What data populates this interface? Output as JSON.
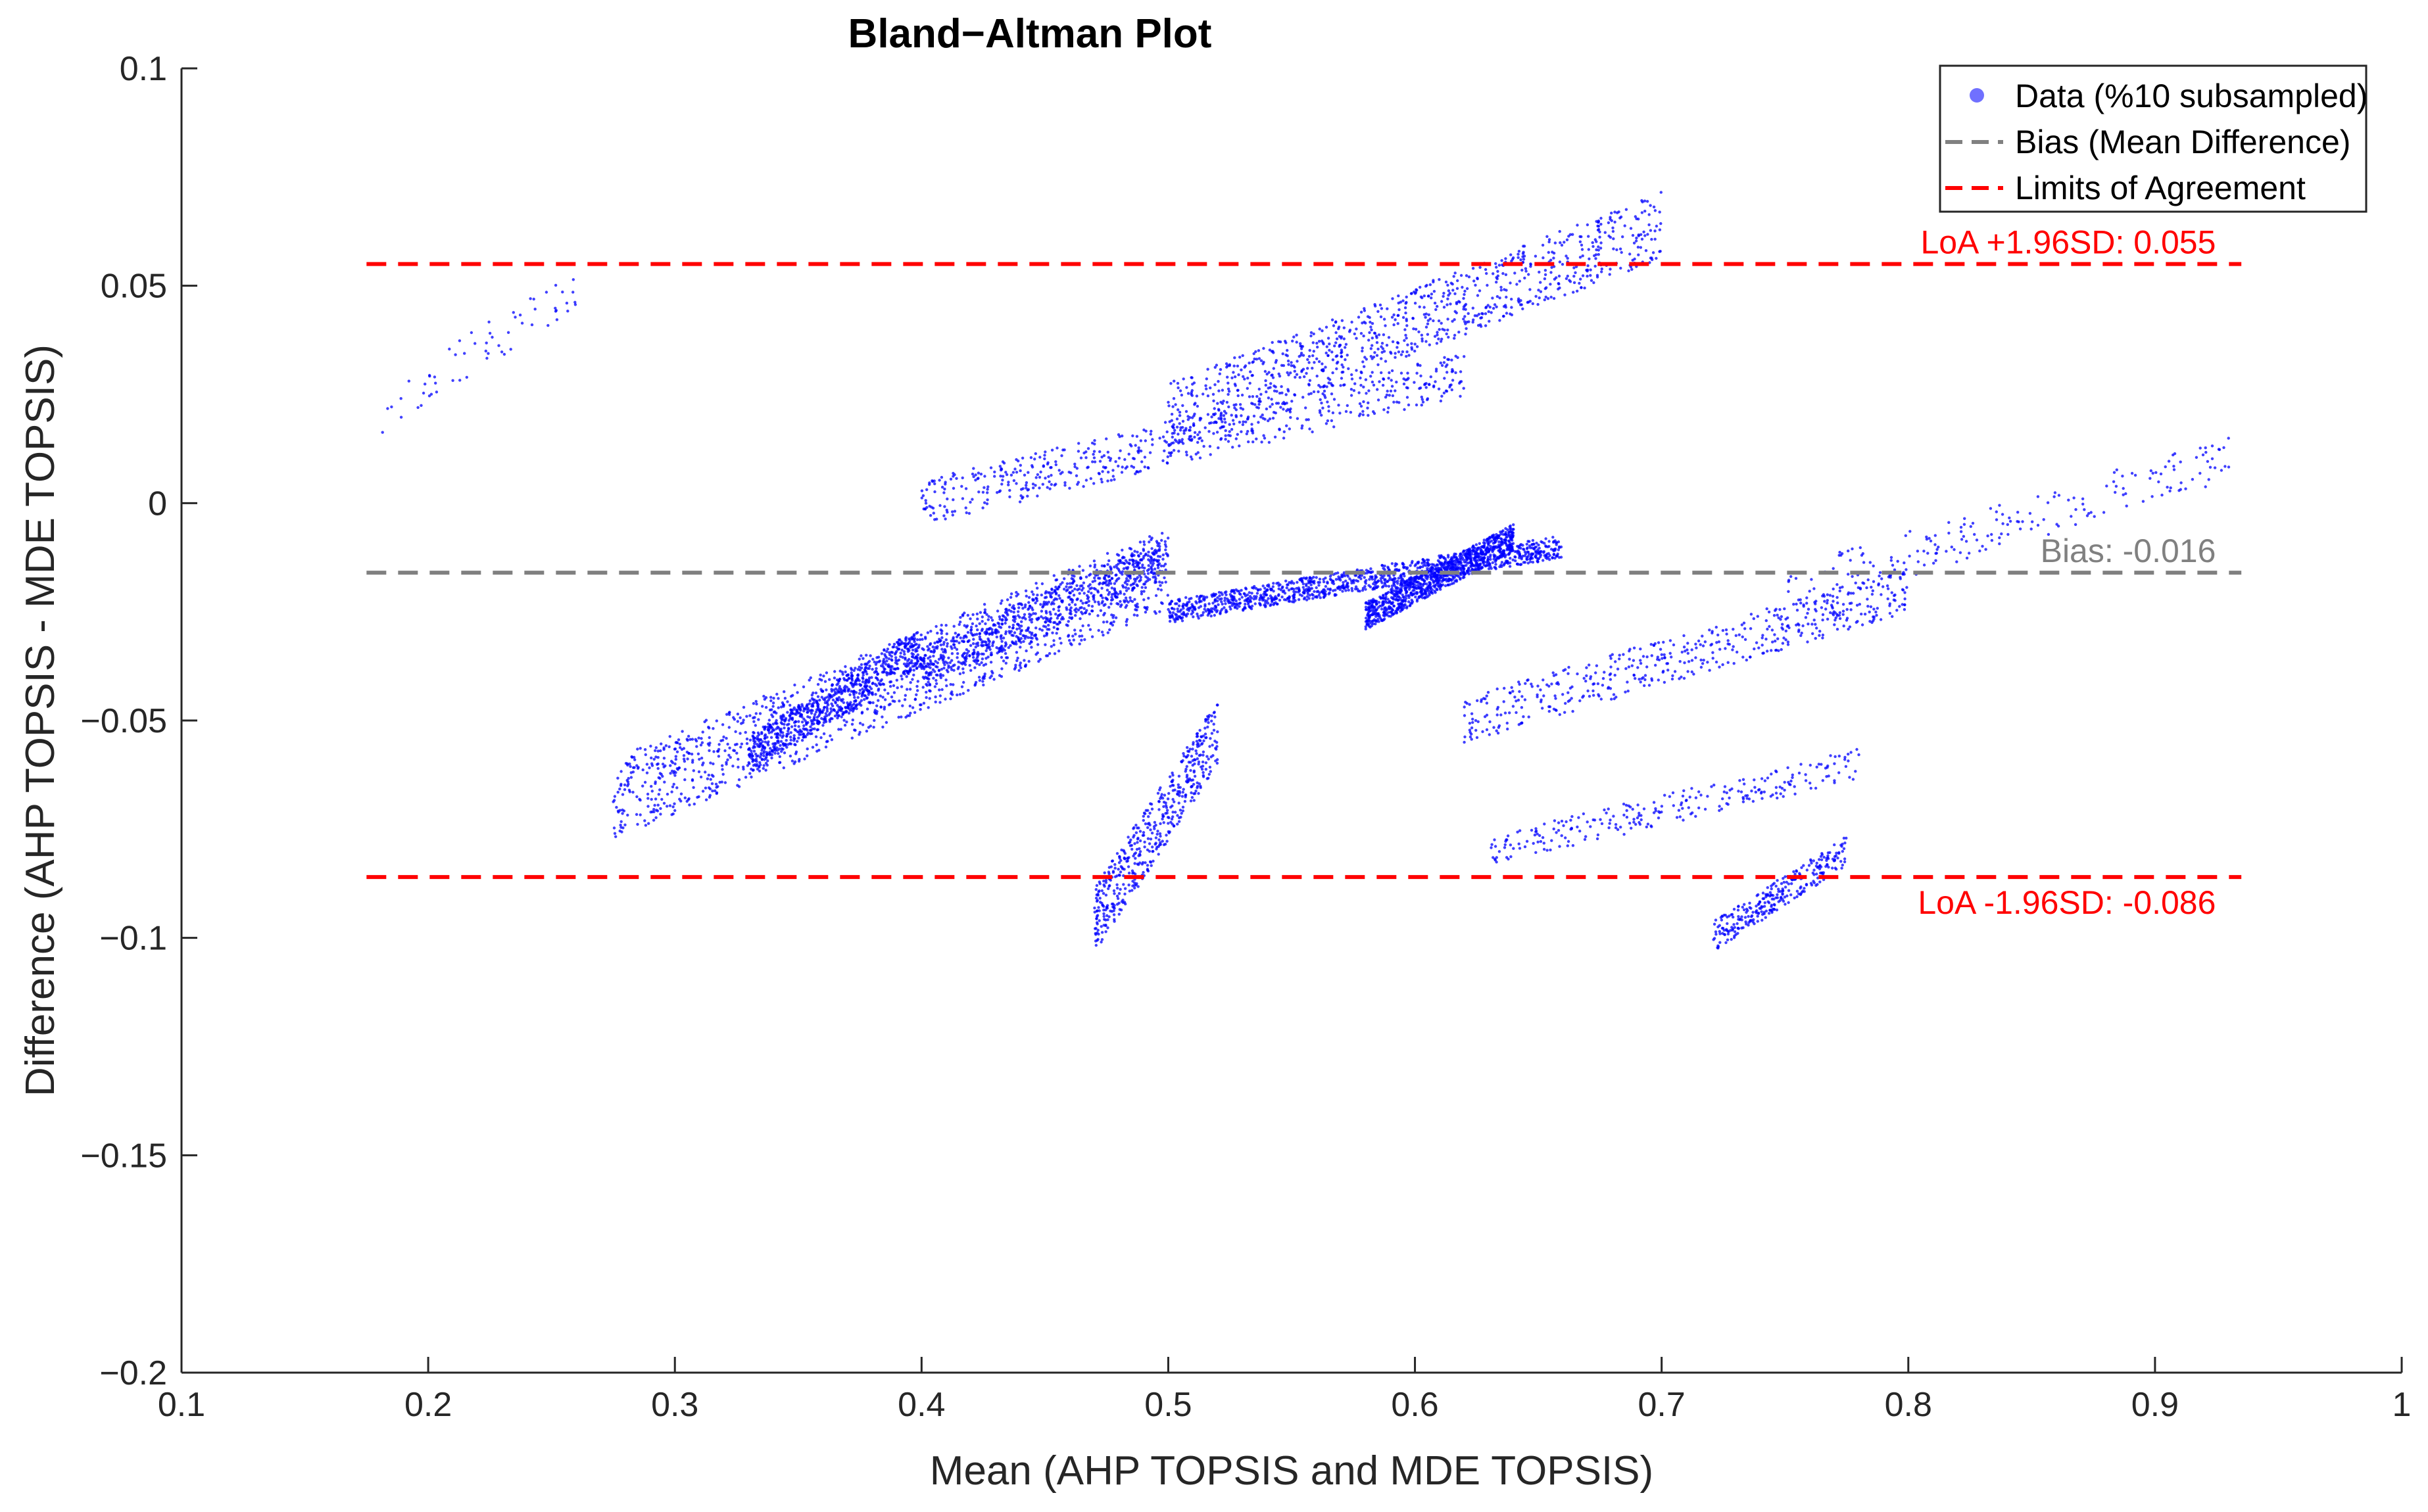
{
  "chart_data": {
    "type": "scatter",
    "title": "Bland−Altman Plot",
    "xlabel": "Mean (AHP TOPSIS and MDE TOPSIS)",
    "ylabel": "Difference (AHP TOPSIS - MDE TOPSIS)",
    "xlim": [
      0.1,
      1
    ],
    "ylim": [
      -0.2,
      0.1
    ],
    "xticks": [
      0.1,
      0.2,
      0.3,
      0.4,
      0.5,
      0.6,
      0.7,
      0.8,
      0.9,
      1
    ],
    "xtick_labels": [
      "0.1",
      "0.2",
      "0.3",
      "0.4",
      "0.5",
      "0.6",
      "0.7",
      "0.8",
      "0.9",
      "1"
    ],
    "yticks": [
      -0.2,
      -0.15,
      -0.1,
      -0.05,
      0,
      0.05,
      0.1
    ],
    "ytick_labels": [
      "−0.2",
      "−0.15",
      "−0.1",
      "−0.05",
      "0",
      "0.05",
      "0.1"
    ],
    "grid": false,
    "legend_position": "top-right",
    "series": [
      {
        "name": "Data (%10 subsampled)",
        "kind": "scatter",
        "color": "#0000ff",
        "clusters": [
          {
            "x": [
              0.275,
              0.5
            ],
            "y": [
              -0.068,
              -0.015
            ],
            "n": 1300
          },
          {
            "x": [
              0.33,
              0.4
            ],
            "y": [
              -0.058,
              -0.033
            ],
            "n": 700
          },
          {
            "x": [
              0.4,
              0.5
            ],
            "y": [
              -0.038,
              -0.012
            ],
            "n": 600
          },
          {
            "x": [
              0.5,
              0.66
            ],
            "y": [
              -0.025,
              -0.01
            ],
            "n": 1100
          },
          {
            "x": [
              0.58,
              0.64
            ],
            "y": [
              -0.026,
              -0.008
            ],
            "n": 900
          },
          {
            "x": [
              0.4,
              0.62
            ],
            "y": [
              0.0,
              0.03
            ],
            "n": 600
          },
          {
            "x": [
              0.5,
              0.7
            ],
            "y": [
              0.02,
              0.064
            ],
            "n": 900
          },
          {
            "x": [
              0.62,
              0.8
            ],
            "y": [
              -0.05,
              -0.02
            ],
            "n": 500
          },
          {
            "x": [
              0.47,
              0.52
            ],
            "y": [
              -0.096,
              -0.053
            ],
            "n": 500
          },
          {
            "x": [
              0.72,
              0.775
            ],
            "y": [
              -0.1,
              -0.08
            ],
            "n": 300
          },
          {
            "x": [
              0.63,
              0.78
            ],
            "y": [
              -0.08,
              -0.06
            ],
            "n": 250
          },
          {
            "x": [
              0.75,
              0.93
            ],
            "y": [
              -0.02,
              0.01
            ],
            "n": 200
          },
          {
            "x": [
              0.18,
              0.26
            ],
            "y": [
              0.02,
              0.05
            ],
            "n": 60
          }
        ]
      },
      {
        "name": "Bias (Mean Difference)",
        "kind": "hline",
        "y": -0.016,
        "x_range": [
          0.175,
          0.935
        ],
        "color": "#808080"
      },
      {
        "name": "Limits of Agreement",
        "kind": "hline",
        "y": [
          0.055,
          -0.086
        ],
        "x_range": [
          0.175,
          0.935
        ],
        "color": "#ff0000"
      }
    ],
    "annotations": [
      {
        "text": "LoA +1.96SD: 0.055",
        "x": 0.93,
        "y": 0.055,
        "color": "#ff0000"
      },
      {
        "text": "Bias: -0.016",
        "x": 0.93,
        "y": -0.016,
        "color": "#808080"
      },
      {
        "text": "LoA -1.96SD: -0.086",
        "x": 0.93,
        "y": -0.086,
        "color": "#ff0000"
      }
    ]
  }
}
